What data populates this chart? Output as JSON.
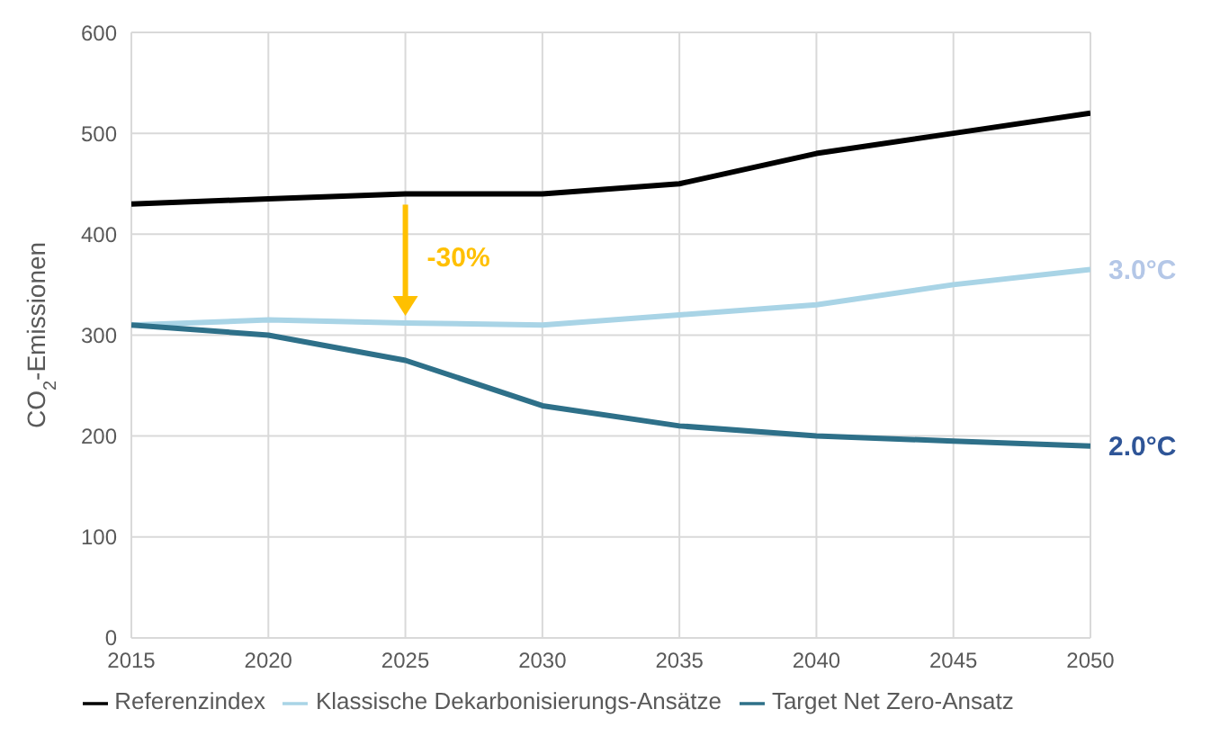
{
  "chart_data": {
    "type": "line",
    "ylabel": "CO$_{2}$-Emissionen",
    "x": [
      2015,
      2020,
      2025,
      2030,
      2035,
      2040,
      2045,
      2050
    ],
    "xlim": [
      2015,
      2050
    ],
    "xticks": [
      2015,
      2020,
      2025,
      2030,
      2035,
      2040,
      2045,
      2050
    ],
    "ylim": [
      0,
      600
    ],
    "yticks": [
      0,
      100,
      200,
      300,
      400,
      500,
      600
    ],
    "series": [
      {
        "name": "Referenzindex",
        "color": "#000000",
        "values": [
          430,
          435,
          440,
          440,
          450,
          480,
          500,
          520
        ]
      },
      {
        "name": "Klassische Dekarbonisierungs-Ansätze",
        "color": "#a9d4e6",
        "values": [
          310,
          315,
          312,
          310,
          320,
          330,
          350,
          365
        ]
      },
      {
        "name": "Target Net Zero-Ansatz",
        "color": "#2e7089",
        "values": [
          310,
          300,
          275,
          230,
          210,
          200,
          195,
          190
        ]
      }
    ],
    "annotations": [
      "-30%",
      "3.0°C",
      "2.0°C"
    ],
    "grid": true,
    "legend": "bottom",
    "marker": "none",
    "line_style": "solid"
  }
}
